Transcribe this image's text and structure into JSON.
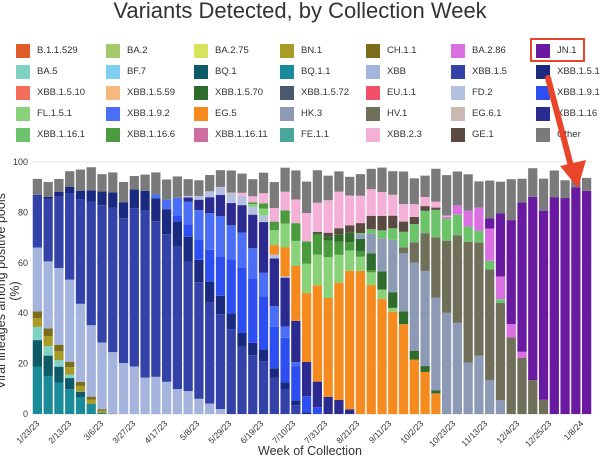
{
  "chart_data": {
    "type": "bar",
    "stacked": true,
    "title": "Variants Detected, by Collection Week",
    "xlabel": "Week of Collection",
    "ylabel": "Viral lineages among positive pools (%)",
    "ylim": [
      0,
      100
    ],
    "yticks": [
      0,
      20,
      40,
      60,
      80,
      100
    ],
    "xtick_labels": [
      "1/23/23",
      "2/13/23",
      "3/6/23",
      "3/27/23",
      "4/17/23",
      "5/8/23",
      "5/29/23",
      "6/19/23",
      "7/10/23",
      "7/31/23",
      "8/21/23",
      "9/11/23",
      "10/2/23",
      "10/23/23",
      "11/13/23",
      "12/4/23",
      "12/25/23",
      "1/8/24"
    ],
    "legend": [
      {
        "name": "B.1.1.529",
        "color": "#e05c2a"
      },
      {
        "name": "BA.2",
        "color": "#a3c96b"
      },
      {
        "name": "BA.2.75",
        "color": "#d7e25d"
      },
      {
        "name": "BN.1",
        "color": "#a89b26"
      },
      {
        "name": "CH.1.1",
        "color": "#7c6d1c"
      },
      {
        "name": "BA.2.86",
        "color": "#d96fe0"
      },
      {
        "name": "JN.1",
        "color": "#6a1aa0"
      },
      {
        "name": "BA.5",
        "color": "#7fd1c4"
      },
      {
        "name": "BF.7",
        "color": "#7fcdf0"
      },
      {
        "name": "BQ.1",
        "color": "#0e5a66"
      },
      {
        "name": "BQ.1.1",
        "color": "#1a8c99"
      },
      {
        "name": "XBB",
        "color": "#a4b4dc"
      },
      {
        "name": "XBB.1.5",
        "color": "#3342a8"
      },
      {
        "name": "XBB.1.5.1",
        "color": "#1a2a80"
      },
      {
        "name": "XBB.1.5.10",
        "color": "#f06e5a"
      },
      {
        "name": "XBB.1.5.59",
        "color": "#f5b87e"
      },
      {
        "name": "XBB.1.5.70",
        "color": "#2f6b2b"
      },
      {
        "name": "XBB.1.5.72",
        "color": "#4a5870"
      },
      {
        "name": "EU.1.1",
        "color": "#f0506a"
      },
      {
        "name": "FD.2",
        "color": "#b5c0e0"
      },
      {
        "name": "XBB.1.9.1",
        "color": "#2d4ef0"
      },
      {
        "name": "FL.1.5.1",
        "color": "#8ad27a"
      },
      {
        "name": "XBB.1.9.2",
        "color": "#4a6ef5"
      },
      {
        "name": "EG.5",
        "color": "#f58a1e"
      },
      {
        "name": "HK.3",
        "color": "#8c9ab5"
      },
      {
        "name": "HV.1",
        "color": "#6f6f5a"
      },
      {
        "name": "EG.6.1",
        "color": "#c9b9b0"
      },
      {
        "name": "XBB.1.16",
        "color": "#2a2a90"
      },
      {
        "name": "XBB.1.16.1",
        "color": "#6cc46a"
      },
      {
        "name": "XBB.1.16.6",
        "color": "#4a9a3e"
      },
      {
        "name": "XBB.1.16.11",
        "color": "#d06ea0"
      },
      {
        "name": "FE.1.1",
        "color": "#4aa59a"
      },
      {
        "name": "XBB.2.3",
        "color": "#f5b0d8"
      },
      {
        "name": "GE.1",
        "color": "#5a4a42"
      },
      {
        "name": "Other",
        "color": "#7a7a7a"
      }
    ],
    "highlighted_series": "JN.1",
    "annotation": "red arrow pointing from JN.1 legend entry to the final weeks"
  }
}
